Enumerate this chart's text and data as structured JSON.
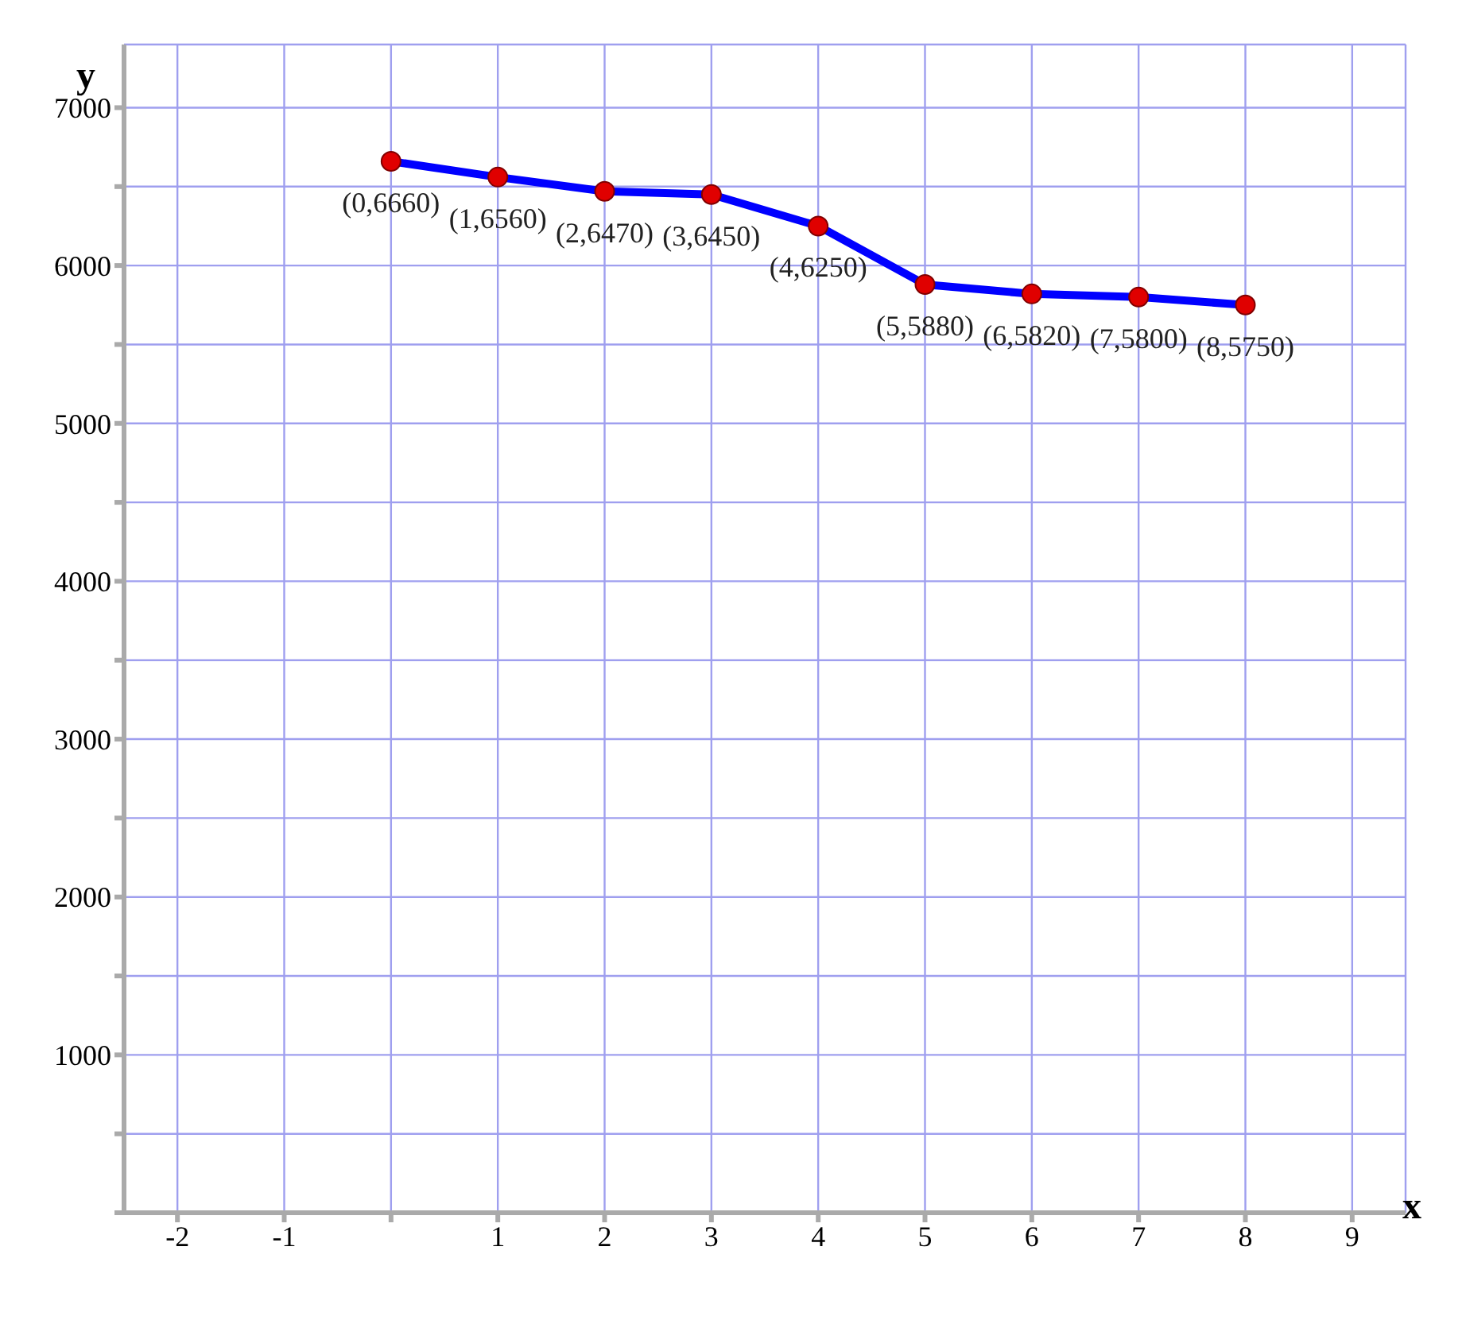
{
  "chart_data": {
    "type": "line",
    "xlabel": "x",
    "ylabel": "y",
    "x": [
      0,
      1,
      2,
      3,
      4,
      5,
      6,
      7,
      8
    ],
    "series": [
      {
        "color": "#0000ff",
        "values": [
          6660,
          6560,
          6470,
          6450,
          6250,
          5880,
          5820,
          5800,
          5750
        ]
      }
    ],
    "annotations": [
      {
        "text": "(0,6660)",
        "x": 0,
        "y": 6660
      },
      {
        "text": "(1,6560)",
        "x": 1,
        "y": 6560
      },
      {
        "text": "(2,6470)",
        "x": 2,
        "y": 6470
      },
      {
        "text": "(3,6450)",
        "x": 3,
        "y": 6450
      },
      {
        "text": "(4,6250)",
        "x": 4,
        "y": 6250
      },
      {
        "text": "(5,5880)",
        "x": 5,
        "y": 5880
      },
      {
        "text": "(6,5820)",
        "x": 6,
        "y": 5820
      },
      {
        "text": "(7,5800)",
        "x": 7,
        "y": 5800
      },
      {
        "text": "(8,5750)",
        "x": 8,
        "y": 5750
      }
    ],
    "xlim": [
      -2.5,
      9.5
    ],
    "xticks": [
      -2,
      -1,
      {
        "value": 0,
        "label": null
      },
      1,
      2,
      3,
      4,
      5,
      6,
      7,
      8,
      9
    ],
    "ylim": [
      0,
      7400
    ],
    "yticks": [
      {
        "value": 0,
        "label": null
      },
      {
        "value": 500,
        "label": null
      },
      1000,
      {
        "value": 1500,
        "label": null
      },
      2000,
      {
        "value": 2500,
        "label": null
      },
      3000,
      {
        "value": 3500,
        "label": null
      },
      4000,
      {
        "value": 4500,
        "label": null
      },
      5000,
      {
        "value": 5500,
        "label": null
      },
      6000,
      {
        "value": 6500,
        "label": null
      },
      7000
    ],
    "grid": true,
    "marker": "circle",
    "line_style": "solid",
    "legend": false
  }
}
